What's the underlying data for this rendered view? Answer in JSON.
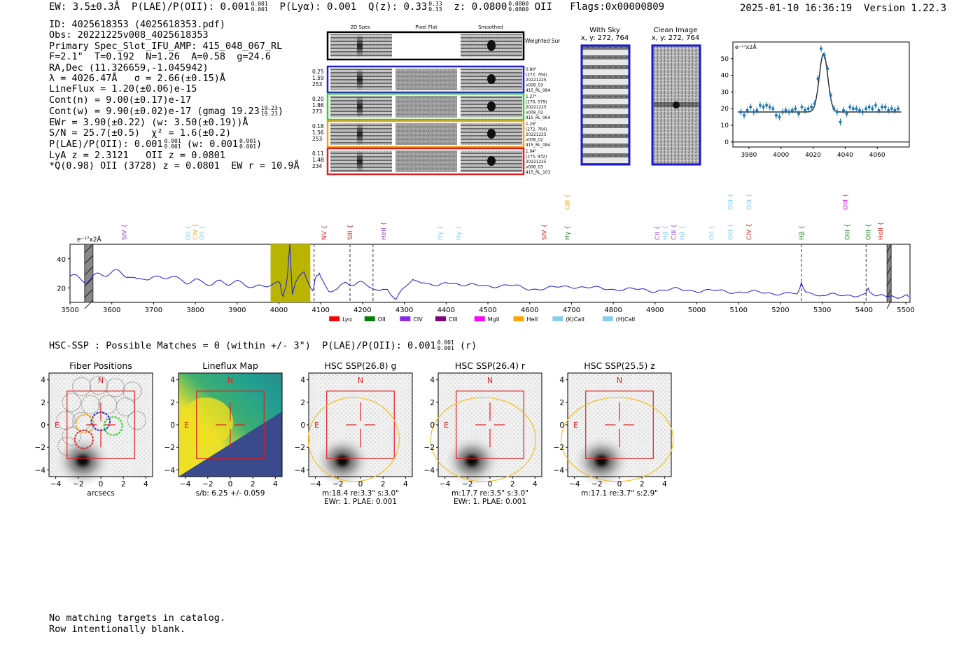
{
  "header": {
    "ew": "EW: 3.5±0.3Å",
    "plae": "P(LAE)/P(OII): 0.001",
    "plae_hi": "0.001",
    "plae_lo": "0.001",
    "plya": "P(Lyα): 0.001",
    "qz": "Q(z): 0.33",
    "qz_hi": "0.33",
    "qz_lo": "0.33",
    "z": "z: 0.0800",
    "z_hi": "0.0800",
    "z_lo": "0.0800",
    "z_line": "OII",
    "flags": "Flags:0x00000809",
    "datetime": "2025-01-10 16:36:19",
    "version": "Version 1.22.3"
  },
  "info": {
    "id": "ID: 4025618353 (4025618353.pdf)",
    "obs": "Obs: 20221225v008_4025618353",
    "primary": "Primary Spec_Slot_IFU_AMP: 415_048_067_RL",
    "fiber": "F=2.1\"  T=0.192  N=1.26  A=0.58  g=24.6",
    "radec": "RA,Dec (11.326659,-1.045942)",
    "lambda": "λ = 4026.47Å   σ = 2.66(±0.15)Å",
    "lineflux": "LineFlux = 1.20(±0.06)e-15",
    "contn": "Cont(n) = 9.00(±0.17)e-17",
    "contw": "Cont(w) = 9.90(±0.02)e-17 (gmag 19.23",
    "gmag_hi": "19.23",
    "gmag_lo": "19.23",
    "ewr": "EWr = 3.90(±0.22) (w: 3.50(±0.19))Å",
    "sn": "S/N = 25.7(±0.5)  χ² = 1.6(±0.2)",
    "plae2": "P(LAE)/P(OII): 0.001",
    "plae2_w": "(w: 0.001",
    "plae2_frac": "0.001",
    "lya": "LyA z = 2.3121   OII z = 0.0801",
    "q": "*Q(0.98) OII (3728) z = 0.0801  EW r = 10.9Å"
  },
  "cutouts": {
    "col_labels": [
      "2D Spec",
      "Pixel Flat",
      "Smoothed"
    ],
    "weighted_label": "Weighted Sum",
    "rows": [
      {
        "left": [
          "0.25",
          "1.59",
          "253"
        ],
        "right": [
          "0.80\"",
          "(272, 764)",
          "20221225",
          "v008_03",
          "415_RL_084"
        ],
        "color": "#2020c0"
      },
      {
        "left": [
          "0.20",
          "1.86",
          "273"
        ],
        "right": [
          "1.27\"",
          "(270, 579)",
          "20221225",
          "v008_02",
          "415_RL_064"
        ],
        "color": "#30d030"
      },
      {
        "left": [
          "0.18",
          "1.56",
          "253"
        ],
        "right": [
          "1.29\"",
          "(272, 764)",
          "20221225",
          "v008_02",
          "415_RL_084"
        ],
        "color": "#f0a020"
      },
      {
        "left": [
          "0.11",
          "1.48",
          "234"
        ],
        "right": [
          "1.94\"",
          "(275, 932)",
          "20221225",
          "v008_03",
          "415_RL_103"
        ],
        "color": "#e02020"
      }
    ]
  },
  "sky": {
    "with_sky": "With Sky",
    "with_sky_xy": "x, y: 272, 764",
    "clean": "Clean Image",
    "clean_xy": "x, y: 272, 764"
  },
  "line_fit_chart": {
    "ylabel": "e⁻¹⁷x2Å",
    "xticks": [
      "3980",
      "4000",
      "4020",
      "4040",
      "4060"
    ],
    "yticks": [
      "0",
      "10",
      "20",
      "30",
      "40",
      "50"
    ]
  },
  "full_spectrum": {
    "ylabel": "e⁻¹⁷x2Å",
    "xticks": [
      "3500",
      "3600",
      "3700",
      "3800",
      "3900",
      "4000",
      "4100",
      "4200",
      "4300",
      "4400",
      "4500",
      "4600",
      "4700",
      "4800",
      "4900",
      "5000",
      "5100",
      "5200",
      "5300",
      "5400",
      "5500"
    ],
    "yticks": [
      "20",
      "40"
    ],
    "line_labels": [
      {
        "t": "SIV",
        "w": 3630,
        "c": "#9040e0",
        "row": 1
      },
      {
        "t": "OII",
        "w": 3783,
        "c": "#80c8f0",
        "row": 1
      },
      {
        "t": "CIV",
        "w": 3800,
        "c": "#f0a020",
        "row": 1
      },
      {
        "t": "OII",
        "w": 3815,
        "c": "#80c8f0",
        "row": 1
      },
      {
        "t": "NV",
        "w": 4108,
        "c": "#e02020",
        "row": 1
      },
      {
        "t": "SIII",
        "w": 4170,
        "c": "#e02020",
        "row": 1
      },
      {
        "t": "HeII",
        "w": 4250,
        "c": "#9040e0",
        "row": 1
      },
      {
        "t": "Hγ",
        "w": 4385,
        "c": "#80c8f0",
        "row": 1
      },
      {
        "t": "Hγ",
        "w": 4430,
        "c": "#80c8f0",
        "row": 1
      },
      {
        "t": "SIV",
        "w": 4635,
        "c": "#e02020",
        "row": 1
      },
      {
        "t": "CIII",
        "w": 4690,
        "c": "#f0a020",
        "row": 0
      },
      {
        "t": "Hγ",
        "w": 4690,
        "c": "#208020",
        "row": 1
      },
      {
        "t": "CII",
        "w": 4905,
        "c": "#9040e0",
        "row": 1
      },
      {
        "t": "Hβ",
        "w": 4925,
        "c": "#80c8f0",
        "row": 1
      },
      {
        "t": "CIII",
        "w": 4945,
        "c": "#9040e0",
        "row": 1
      },
      {
        "t": "Hβ",
        "w": 4965,
        "c": "#80c8f0",
        "row": 1
      },
      {
        "t": "OII",
        "w": 5035,
        "c": "#80c8f0",
        "row": 1
      },
      {
        "t": "OIII",
        "w": 5080,
        "c": "#80c8f0",
        "row": 0
      },
      {
        "t": "OIII",
        "w": 5080,
        "c": "#80c8f0",
        "row": 1
      },
      {
        "t": "OIII",
        "w": 5125,
        "c": "#80c8f0",
        "row": 0
      },
      {
        "t": "CIV",
        "w": 5125,
        "c": "#e02020",
        "row": 1
      },
      {
        "t": "Hβ",
        "w": 5250,
        "c": "#208020",
        "row": 1
      },
      {
        "t": "OIII",
        "w": 5355,
        "c": "#e000e0",
        "row": 0
      },
      {
        "t": "OIII",
        "w": 5360,
        "c": "#208020",
        "row": 1
      },
      {
        "t": "OIII",
        "w": 5410,
        "c": "#208020",
        "row": 1
      },
      {
        "t": "HeII",
        "w": 5440,
        "c": "#e02020",
        "row": 1
      }
    ],
    "legend": [
      {
        "label": "Lyα",
        "color": "#ff0000"
      },
      {
        "label": "OII",
        "color": "#008000"
      },
      {
        "label": "CIV",
        "color": "#8a2be2"
      },
      {
        "label": "CIII",
        "color": "#800080"
      },
      {
        "label": "MgII",
        "color": "#ff00ff"
      },
      {
        "label": "HeII",
        "color": "#ffa500"
      },
      {
        "label": "(K)CaII",
        "color": "#87ceeb"
      },
      {
        "label": "(H)CaII",
        "color": "#87ceeb"
      }
    ]
  },
  "hsc": {
    "line": "HSC-SSP : Possible Matches = 0 (within +/- 3\")  P(LAE)/P(OII): 0.001",
    "frac": "0.001",
    "band": "(r)"
  },
  "panels": [
    {
      "title": "Fiber Positions",
      "xlabel": "arcsecs",
      "sub1": "",
      "sub2": ""
    },
    {
      "title": "Lineflux Map",
      "xlabel": "",
      "sub1": "s/b: 6.25 +/- 0.059",
      "sub2": ""
    },
    {
      "title": "HSC SSP(26.8) g",
      "xlabel": "",
      "sub1": "m:18.4  re:3.3\"  s:3.0\"",
      "sub2": "EWr: 1. PLAE: 0.001"
    },
    {
      "title": "HSC SSP(26.4) r",
      "xlabel": "",
      "sub1": "m:17.7  re:3.5\"  s:3.0\"",
      "sub2": "EWr: 1. PLAE: 0.001"
    },
    {
      "title": "HSC SSP(25.5) z",
      "xlabel": "",
      "sub1": "m:17.1  re:3.7\"  s:2.9\"",
      "sub2": ""
    }
  ],
  "panel_axis": {
    "ticks": [
      "−4",
      "−2",
      "0",
      "2",
      "4"
    ],
    "n": "N",
    "e": "E"
  },
  "footer": {
    "line1": "No matching targets in catalog.",
    "line2": "Row intentionally blank."
  },
  "chart_data": [
    {
      "type": "scatter",
      "title": "",
      "xlabel": "",
      "ylabel": "e⁻¹⁷x2Å",
      "xlim": [
        3970,
        4080
      ],
      "ylim": [
        -3,
        60
      ],
      "x": [
        3975,
        3977,
        3979,
        3981,
        3983,
        3985,
        3987,
        3989,
        3991,
        3993,
        3995,
        3997,
        3999,
        4001,
        4003,
        4005,
        4007,
        4009,
        4011,
        4013,
        4015,
        4017,
        4019,
        4021,
        4023,
        4025,
        4027,
        4029,
        4031,
        4033,
        4035,
        4037,
        4039,
        4041,
        4043,
        4045,
        4047,
        4049,
        4051,
        4053,
        4055,
        4057,
        4059,
        4061,
        4063,
        4065,
        4067,
        4069,
        4071,
        4073
      ],
      "values": [
        18,
        16,
        19,
        21,
        18,
        19,
        22,
        21,
        22,
        21,
        20,
        16,
        15,
        18,
        19,
        18,
        19,
        20,
        17,
        21,
        19,
        20,
        21,
        23,
        38,
        56,
        52,
        44,
        28,
        20,
        18,
        12,
        19,
        17,
        21,
        20,
        20,
        19,
        18,
        20,
        21,
        20,
        22,
        19,
        21,
        21,
        19,
        20,
        19,
        20
      ],
      "fit": {
        "continuum": 18,
        "peak_wave": 4026.5,
        "amplitude": 35,
        "sigma": 2.66
      }
    },
    {
      "type": "line",
      "title": "",
      "xlabel": "",
      "ylabel": "e⁻¹⁷x2Å",
      "xlim": [
        3500,
        5510
      ],
      "ylim": [
        10,
        50
      ],
      "x": [
        3500,
        3520,
        3540,
        3560,
        3580,
        3600,
        3620,
        3640,
        3660,
        3680,
        3700,
        3720,
        3740,
        3760,
        3780,
        3800,
        3820,
        3840,
        3860,
        3880,
        3900,
        3920,
        3940,
        3960,
        3980,
        4000,
        4010,
        4020,
        4026,
        4032,
        4040,
        4060,
        4080,
        4090,
        4100,
        4120,
        4140,
        4160,
        4180,
        4200,
        4220,
        4240,
        4260,
        4280,
        4300,
        4320,
        4340,
        4360,
        4380,
        4400,
        4450,
        4500,
        4550,
        4600,
        4650,
        4700,
        4750,
        4800,
        4850,
        4900,
        4950,
        5000,
        5050,
        5100,
        5150,
        5200,
        5240,
        5250,
        5260,
        5300,
        5350,
        5400,
        5410,
        5420,
        5450,
        5480,
        5500,
        5510
      ],
      "values": [
        30,
        28,
        26,
        27,
        28,
        29,
        30,
        30,
        26,
        29,
        27,
        26,
        27,
        25,
        24,
        26,
        25,
        23,
        24,
        22,
        23,
        22,
        21,
        22,
        24,
        23,
        14,
        28,
        50,
        15,
        22,
        30,
        19,
        30,
        27,
        20,
        19,
        24,
        21,
        22,
        21,
        17,
        21,
        13,
        20,
        26,
        22,
        23,
        21,
        24,
        22,
        21,
        22,
        19,
        20,
        21,
        20,
        19,
        19,
        18,
        19,
        18,
        18,
        17,
        17,
        16,
        16,
        23,
        16,
        15,
        15,
        15,
        20,
        15,
        15,
        14,
        15,
        14
      ],
      "highlight_range": [
        3980,
        4075
      ],
      "vlines": [
        4084,
        4170,
        4225,
        5250,
        5405
      ]
    }
  ]
}
